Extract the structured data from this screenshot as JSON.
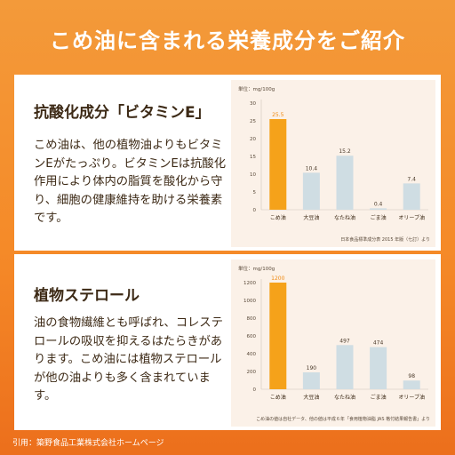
{
  "page": {
    "title": "こめ油に含まれる栄養成分をご紹介"
  },
  "section1": {
    "heading": "抗酸化成分「ビタミンE」",
    "body": "こめ油は、他の植物油よりもビタミンEがたっぷり。ビタミンEは抗酸化作用により体内の脂質を酸化から守り、細胞の健康維持を助ける栄養素です。"
  },
  "section2": {
    "heading": "植物ステロール",
    "body": "油の食物繊維とも呼ばれ、コレステロールの吸収を抑えるはたらきがあります。こめ油には植物ステロールが他の油よりも多く含まれています。"
  },
  "footer": {
    "citation": "引用：築野食品工業株式会社ホームページ"
  },
  "colors": {
    "highlight_bar": "#f5a21a",
    "other_bar": "#cfdde3",
    "highlight_label": "#f08a12"
  },
  "chart_data": [
    {
      "type": "bar",
      "unit_label": "単位：mg/100g",
      "categories": [
        "こめ油",
        "大豆油",
        "なたね油",
        "ごま油",
        "オリーブ油"
      ],
      "values": [
        25.5,
        10.4,
        15.2,
        0.4,
        7.4
      ],
      "value_labels": [
        "25.5",
        "10.4",
        "15.2",
        "0.4",
        "7.4"
      ],
      "yticks": [
        "0",
        "5",
        "10",
        "15",
        "20",
        "25",
        "30"
      ],
      "ylim": [
        0,
        30
      ],
      "highlight_index": 0,
      "source": "日本食品標準成分表 2015 年版（七訂）より"
    },
    {
      "type": "bar",
      "unit_label": "単位：mg/100g",
      "categories": [
        "こめ油",
        "大豆油",
        "なたね油",
        "ごま油",
        "オリーブ油"
      ],
      "values": [
        1200,
        190,
        497,
        474,
        98
      ],
      "value_labels": [
        "1200",
        "190",
        "497",
        "474",
        "98"
      ],
      "yticks": [
        "0",
        "200",
        "400",
        "600",
        "800",
        "1000",
        "1200"
      ],
      "ylim": [
        0,
        1200
      ],
      "highlight_index": 0,
      "source": "こめ油の値は自社データ、他の値は平成６年「食用植物油脂 JAS 格付結果報告書」より"
    }
  ]
}
